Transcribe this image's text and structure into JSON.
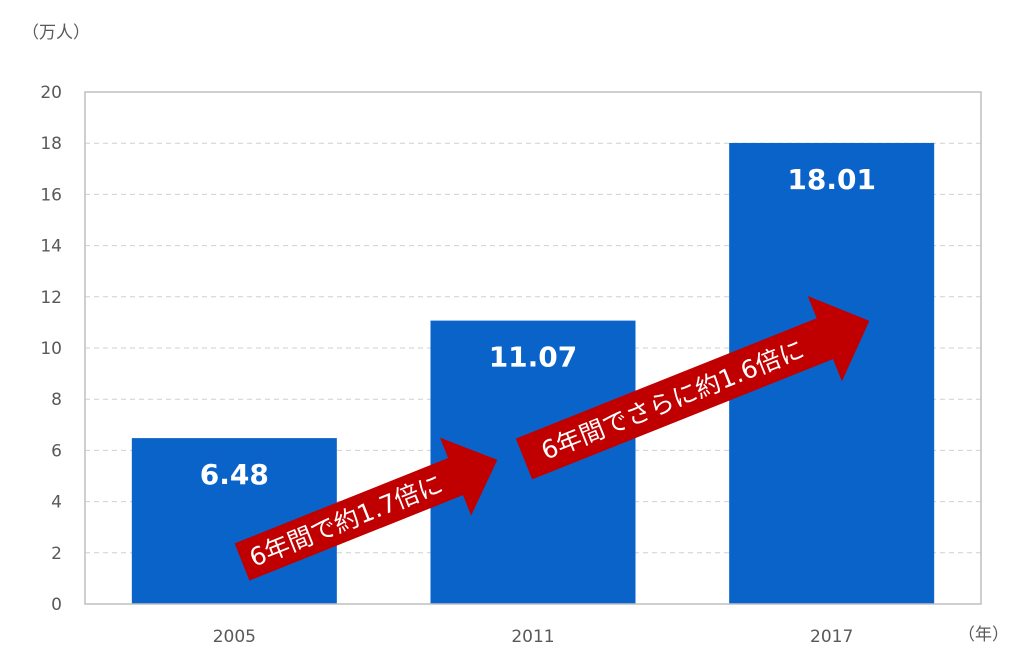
{
  "chart_data": {
    "type": "bar",
    "categories": [
      "2005",
      "2011",
      "2017"
    ],
    "values": [
      6.48,
      11.07,
      18.01
    ],
    "data_labels": [
      "6.48",
      "11.07",
      "18.01"
    ],
    "ylim": [
      0,
      20
    ],
    "yticks": [
      0,
      2,
      4,
      6,
      8,
      10,
      12,
      14,
      16,
      18,
      20
    ],
    "y_unit_label": "（万人）",
    "x_unit_label": "（年）",
    "grid": true,
    "bar_color": "#0a63c9",
    "annotations": [
      {
        "text": "6年間で約1.7倍に",
        "color": "#c00000"
      },
      {
        "text": "6年間でさらに約1.6倍に",
        "color": "#c00000"
      }
    ]
  }
}
